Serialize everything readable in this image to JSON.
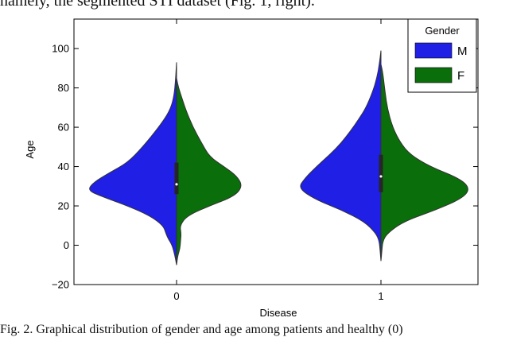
{
  "captions": {
    "top": "namely, the segmented STI dataset (Fig. 1, right).",
    "bottom": "Fig. 2.  Graphical distribution of gender and age among patients and healthy (0)"
  },
  "colors": {
    "male": "#1f1fe6",
    "female": "#0a6e0a",
    "axis": "#000000"
  },
  "chart_data": {
    "type": "violin-split",
    "xlabel": "Disease",
    "ylabel": "Age",
    "categories": [
      "0",
      "1"
    ],
    "ylim": [
      -20,
      115
    ],
    "yticks": [
      -20,
      0,
      20,
      40,
      60,
      80,
      100
    ],
    "ytick_labels": [
      "−20",
      "0",
      "20",
      "40",
      "60",
      "80",
      "100"
    ],
    "legend": {
      "title": "Gender",
      "entries": [
        {
          "label": "M",
          "color": "#1f1fe6"
        },
        {
          "label": "F",
          "color": "#0a6e0a"
        }
      ],
      "placement": "top-right"
    },
    "grid": false,
    "series": [
      {
        "name": "M",
        "category": "0",
        "profile": [
          [
            -10,
            0.0
          ],
          [
            -5,
            0.02
          ],
          [
            0,
            0.05
          ],
          [
            3,
            0.09
          ],
          [
            6,
            0.12
          ],
          [
            10,
            0.15
          ],
          [
            15,
            0.3
          ],
          [
            20,
            0.55
          ],
          [
            25,
            0.85
          ],
          [
            28,
            1.0
          ],
          [
            32,
            0.93
          ],
          [
            37,
            0.75
          ],
          [
            42,
            0.55
          ],
          [
            50,
            0.38
          ],
          [
            60,
            0.2
          ],
          [
            68,
            0.08
          ],
          [
            75,
            0.03
          ],
          [
            85,
            0.01
          ],
          [
            93,
            0.0
          ]
        ]
      },
      {
        "name": "F",
        "category": "0",
        "profile": [
          [
            -10,
            0.0
          ],
          [
            -5,
            0.02
          ],
          [
            -2,
            0.05
          ],
          [
            2,
            0.06
          ],
          [
            6,
            0.07
          ],
          [
            10,
            0.05
          ],
          [
            15,
            0.16
          ],
          [
            20,
            0.5
          ],
          [
            25,
            0.88
          ],
          [
            30,
            1.0
          ],
          [
            35,
            0.92
          ],
          [
            40,
            0.72
          ],
          [
            45,
            0.5
          ],
          [
            52,
            0.38
          ],
          [
            60,
            0.25
          ],
          [
            68,
            0.15
          ],
          [
            75,
            0.08
          ],
          [
            80,
            0.03
          ],
          [
            85,
            0.0
          ]
        ]
      },
      {
        "name": "M",
        "category": "1",
        "profile": [
          [
            -8,
            0.0
          ],
          [
            -3,
            0.01
          ],
          [
            2,
            0.02
          ],
          [
            6,
            0.06
          ],
          [
            12,
            0.2
          ],
          [
            18,
            0.48
          ],
          [
            23,
            0.78
          ],
          [
            29,
            1.0
          ],
          [
            34,
            0.92
          ],
          [
            40,
            0.78
          ],
          [
            46,
            0.62
          ],
          [
            52,
            0.48
          ],
          [
            58,
            0.37
          ],
          [
            64,
            0.27
          ],
          [
            70,
            0.18
          ],
          [
            78,
            0.1
          ],
          [
            85,
            0.05
          ],
          [
            92,
            0.02
          ],
          [
            99,
            0.0
          ]
        ]
      },
      {
        "name": "F",
        "category": "1",
        "profile": [
          [
            -8,
            0.0
          ],
          [
            -3,
            0.01
          ],
          [
            2,
            0.02
          ],
          [
            6,
            0.07
          ],
          [
            12,
            0.25
          ],
          [
            18,
            0.62
          ],
          [
            24,
            0.92
          ],
          [
            29,
            1.0
          ],
          [
            34,
            0.88
          ],
          [
            40,
            0.55
          ],
          [
            46,
            0.33
          ],
          [
            52,
            0.22
          ],
          [
            60,
            0.13
          ],
          [
            70,
            0.07
          ],
          [
            80,
            0.04
          ],
          [
            88,
            0.02
          ],
          [
            92,
            0.0
          ]
        ]
      }
    ],
    "half_widths": {
      "0": {
        "M": 1.0,
        "F": 0.74
      },
      "1": {
        "M": 0.93,
        "F": 1.0
      }
    },
    "box": {
      "0": {
        "q1": 26,
        "median": 31,
        "q3": 42
      },
      "1": {
        "q1": 27,
        "median": 35,
        "q3": 46
      }
    }
  }
}
